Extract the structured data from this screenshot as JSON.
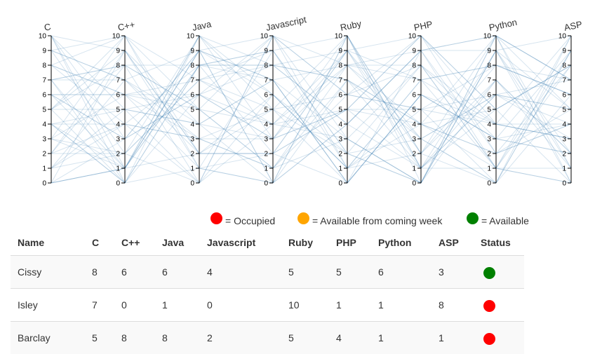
{
  "chart_data": {
    "type": "parallel-coordinates",
    "axes": [
      "C",
      "C++",
      "Java",
      "Javascript",
      "Ruby",
      "PHP",
      "Python",
      "ASP"
    ],
    "ylim": [
      0,
      10
    ],
    "ticks": [
      0,
      1,
      2,
      3,
      4,
      5,
      6,
      7,
      8,
      9,
      10
    ],
    "line_color": "#4682b4",
    "series": [
      {
        "values": [
          8,
          6,
          6,
          4,
          5,
          5,
          6,
          3
        ]
      },
      {
        "values": [
          7,
          0,
          1,
          0,
          10,
          1,
          1,
          8
        ]
      },
      {
        "values": [
          5,
          8,
          8,
          2,
          5,
          4,
          1,
          1
        ]
      },
      {
        "values": [
          10,
          1,
          9,
          7,
          3,
          0,
          9,
          2
        ]
      },
      {
        "values": [
          0,
          1,
          10,
          3,
          8,
          9,
          1,
          0
        ]
      },
      {
        "values": [
          4,
          4,
          8,
          9,
          1,
          2,
          10,
          5
        ]
      },
      {
        "values": [
          6,
          6,
          3,
          5,
          0,
          6,
          4,
          10
        ]
      },
      {
        "values": [
          9,
          10,
          5,
          1,
          7,
          3,
          0,
          6
        ]
      },
      {
        "values": [
          1,
          5,
          0,
          10,
          6,
          10,
          4,
          4
        ]
      },
      {
        "values": [
          3,
          2,
          7,
          8,
          9,
          7,
          8,
          7
        ]
      },
      {
        "values": [
          2,
          9,
          2,
          6,
          2,
          8,
          3,
          9
        ]
      },
      {
        "values": [
          7,
          7,
          4,
          0,
          10,
          0,
          7,
          2
        ]
      },
      {
        "values": [
          10,
          3,
          6,
          10,
          1,
          4,
          10,
          0
        ]
      },
      {
        "values": [
          4,
          0,
          10,
          8,
          4,
          1,
          5,
          8
        ]
      },
      {
        "values": [
          5,
          10,
          1,
          2,
          0,
          9,
          2,
          5
        ]
      },
      {
        "values": [
          0,
          1,
          9,
          7,
          8,
          3,
          6,
          4
        ]
      },
      {
        "values": [
          8,
          4,
          3,
          3,
          10,
          1,
          9,
          1
        ]
      },
      {
        "values": [
          6,
          1,
          8,
          9,
          2,
          0,
          10,
          7
        ]
      },
      {
        "values": [
          9,
          7,
          2,
          5,
          6,
          5,
          0,
          10
        ]
      },
      {
        "values": [
          3,
          6,
          5,
          1,
          3,
          8,
          4,
          3
        ]
      },
      {
        "values": [
          1,
          2,
          7,
          4,
          9,
          2,
          8,
          6
        ]
      },
      {
        "values": [
          2,
          8,
          0,
          6,
          1,
          7,
          1,
          9
        ]
      },
      {
        "values": [
          7,
          1,
          9,
          10,
          8,
          4,
          5,
          0
        ]
      },
      {
        "values": [
          4,
          5,
          4,
          3,
          5,
          10,
          2,
          8
        ]
      },
      {
        "values": [
          10,
          0,
          8,
          7,
          0,
          6,
          3,
          4
        ]
      },
      {
        "values": [
          5,
          9,
          1,
          0,
          7,
          1,
          7,
          2
        ]
      },
      {
        "values": [
          0,
          3,
          6,
          8,
          4,
          9,
          9,
          5
        ]
      },
      {
        "values": [
          8,
          10,
          2,
          2,
          9,
          3,
          6,
          7
        ]
      },
      {
        "values": [
          6,
          6,
          7,
          9,
          2,
          0,
          10,
          1
        ]
      },
      {
        "values": [
          3,
          1,
          10,
          5,
          10,
          2,
          0,
          9
        ]
      },
      {
        "values": [
          1,
          4,
          3,
          1,
          6,
          5,
          4,
          3
        ]
      },
      {
        "values": [
          9,
          7,
          9,
          6,
          1,
          7,
          8,
          6
        ]
      },
      {
        "values": [
          2,
          2,
          0,
          4,
          8,
          8,
          1,
          10
        ]
      },
      {
        "values": [
          7,
          8,
          5,
          10,
          3,
          0,
          9,
          0
        ]
      },
      {
        "values": [
          4,
          0,
          8,
          8,
          7,
          4,
          2,
          4
        ]
      },
      {
        "values": [
          5,
          5,
          6,
          3,
          5,
          10,
          5,
          8
        ]
      },
      {
        "values": [
          10,
          9,
          4,
          7,
          0,
          6,
          3,
          2
        ]
      },
      {
        "values": [
          0,
          1,
          2,
          2,
          9,
          1,
          6,
          5
        ]
      },
      {
        "values": [
          6,
          3,
          9,
          0,
          4,
          9,
          10,
          7
        ]
      },
      {
        "values": [
          8,
          6,
          1,
          9,
          10,
          2,
          7,
          1
        ]
      },
      {
        "values": [
          3,
          10,
          7,
          5,
          2,
          3,
          0,
          9
        ]
      },
      {
        "values": [
          1,
          7,
          3,
          1,
          8,
          7,
          4,
          3
        ]
      },
      {
        "values": [
          9,
          2,
          10,
          6,
          1,
          5,
          8,
          6
        ]
      },
      {
        "values": [
          2,
          4,
          0,
          10,
          6,
          8,
          1,
          0
        ]
      },
      {
        "values": [
          7,
          8,
          5,
          4,
          3,
          0,
          9,
          10
        ]
      },
      {
        "values": [
          4,
          1,
          8,
          8,
          7,
          4,
          2,
          4
        ]
      },
      {
        "values": [
          5,
          0,
          6,
          3,
          9,
          10,
          5,
          8
        ]
      },
      {
        "values": [
          10,
          5,
          4,
          7,
          0,
          6,
          3,
          2
        ]
      },
      {
        "values": [
          0,
          9,
          2,
          2,
          5,
          1,
          6,
          5
        ]
      },
      {
        "values": [
          6,
          3,
          9,
          0,
          4,
          9,
          10,
          7
        ]
      }
    ]
  },
  "legend": {
    "occupied": {
      "label": "= Occupied",
      "color": "#ff0000"
    },
    "coming": {
      "label": "= Available from coming week",
      "color": "#ffa500"
    },
    "available": {
      "label": "= Available",
      "color": "#008000"
    }
  },
  "table": {
    "headers": [
      "Name",
      "C",
      "C++",
      "Java",
      "Javascript",
      "Ruby",
      "PHP",
      "Python",
      "ASP",
      "Status"
    ],
    "rows": [
      {
        "cells": [
          "Cissy",
          "8",
          "6",
          "6",
          "4",
          "5",
          "5",
          "6",
          "3"
        ],
        "status_color": "#008000"
      },
      {
        "cells": [
          "Isley",
          "7",
          "0",
          "1",
          "0",
          "10",
          "1",
          "1",
          "8"
        ],
        "status_color": "#ff0000"
      },
      {
        "cells": [
          "Barclay",
          "5",
          "8",
          "8",
          "2",
          "5",
          "4",
          "1",
          "1"
        ],
        "status_color": "#ff0000"
      }
    ]
  }
}
